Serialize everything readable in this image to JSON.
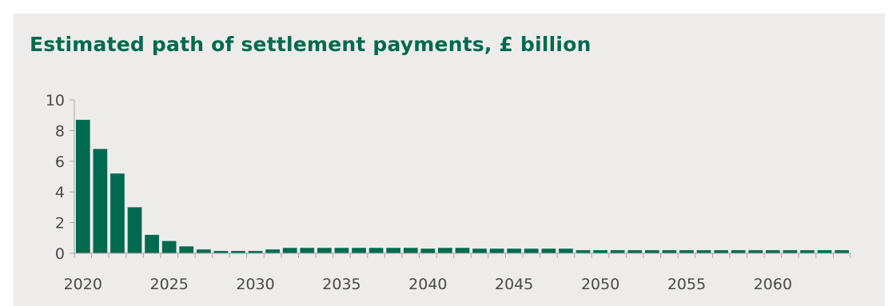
{
  "chart_data": {
    "type": "bar",
    "title": "Estimated path of settlement payments, £ billion",
    "xlabel": "",
    "ylabel": "",
    "ylim": [
      0,
      10
    ],
    "y_ticks": [
      0,
      2,
      4,
      6,
      8,
      10
    ],
    "x_tick_labels": [
      "2020",
      "2025",
      "2030",
      "2035",
      "2040",
      "2045",
      "2050",
      "2055",
      "2060"
    ],
    "categories": [
      2020,
      2021,
      2022,
      2023,
      2024,
      2025,
      2026,
      2027,
      2028,
      2029,
      2030,
      2031,
      2032,
      2033,
      2034,
      2035,
      2036,
      2037,
      2038,
      2039,
      2040,
      2041,
      2042,
      2043,
      2044,
      2045,
      2046,
      2047,
      2048,
      2049,
      2050,
      2051,
      2052,
      2053,
      2054,
      2055,
      2056,
      2057,
      2058,
      2059,
      2060,
      2061,
      2062,
      2063,
      2064
    ],
    "values": [
      8.7,
      6.8,
      5.2,
      3.0,
      1.2,
      0.8,
      0.45,
      0.25,
      0.15,
      0.15,
      0.15,
      0.25,
      0.35,
      0.35,
      0.35,
      0.35,
      0.35,
      0.35,
      0.35,
      0.35,
      0.3,
      0.35,
      0.35,
      0.3,
      0.3,
      0.3,
      0.3,
      0.3,
      0.3,
      0.2,
      0.2,
      0.2,
      0.2,
      0.2,
      0.2,
      0.2,
      0.2,
      0.2,
      0.2,
      0.2,
      0.2,
      0.2,
      0.2,
      0.2,
      0.2
    ],
    "colors": {
      "bar": "#006a4e",
      "axis": "#a6a6a6",
      "background": "#eeeceb",
      "title": "#006a4e"
    },
    "grid": false
  }
}
